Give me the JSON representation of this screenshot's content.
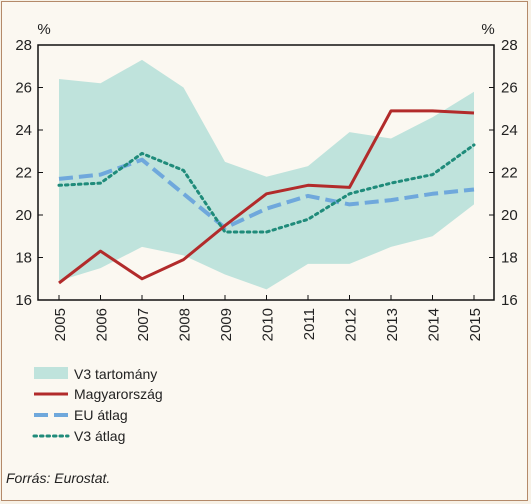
{
  "colors": {
    "band": "#bfe3dc",
    "hungary": "#b22b2b",
    "eu": "#6fa8dc",
    "v3": "#1f8b7a",
    "background": "#fbf8f1",
    "frame": "#b48a6a"
  },
  "source": "Forrás: Eurostat.",
  "chart_data": {
    "type": "line",
    "unit_left": "%",
    "unit_right": "%",
    "x": [
      "2005",
      "2006",
      "2007",
      "2008",
      "2009",
      "2010",
      "2011",
      "2012",
      "2013",
      "2014",
      "2015"
    ],
    "ylim": [
      16,
      28
    ],
    "yticks": [
      16,
      18,
      20,
      22,
      24,
      26,
      28
    ],
    "band": {
      "name": "V3 tartomány",
      "upper": [
        26.4,
        26.2,
        27.3,
        26.0,
        22.5,
        21.8,
        22.3,
        23.9,
        23.6,
        24.6,
        25.8
      ],
      "lower": [
        16.9,
        17.5,
        18.5,
        18.1,
        17.2,
        16.5,
        17.7,
        17.7,
        18.5,
        19.0,
        20.5
      ]
    },
    "series": [
      {
        "name": "Magyarország",
        "style": "solid",
        "values": [
          16.8,
          18.3,
          17.0,
          17.9,
          19.5,
          21.0,
          21.4,
          21.3,
          24.9,
          24.9,
          24.8
        ]
      },
      {
        "name": "EU átlag",
        "style": "dashed",
        "values": [
          21.7,
          21.9,
          22.6,
          21.0,
          19.4,
          20.3,
          20.9,
          20.5,
          20.7,
          21.0,
          21.2
        ]
      },
      {
        "name": "V3 átlag",
        "style": "dotted",
        "values": [
          21.4,
          21.5,
          22.9,
          22.1,
          19.2,
          19.2,
          19.8,
          21.0,
          21.5,
          21.9,
          23.3
        ]
      }
    ],
    "legend_position": "bottom-left",
    "grid": false
  }
}
